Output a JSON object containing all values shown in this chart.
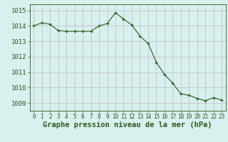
{
  "x": [
    0,
    1,
    2,
    3,
    4,
    5,
    6,
    7,
    8,
    9,
    10,
    11,
    12,
    13,
    14,
    15,
    16,
    17,
    18,
    19,
    20,
    21,
    22,
    23
  ],
  "y": [
    1014.0,
    1014.2,
    1014.1,
    1013.7,
    1013.65,
    1013.65,
    1013.65,
    1013.65,
    1014.0,
    1014.15,
    1014.85,
    1014.45,
    1014.05,
    1013.35,
    1012.85,
    1011.65,
    1010.85,
    1010.3,
    1009.6,
    1009.5,
    1009.3,
    1009.15,
    1009.35,
    1009.2
  ],
  "line_color": "#2d5a1b",
  "marker_color": "#2d5a1b",
  "bg_color": "#d8f0ee",
  "grid_color": "#c8b8c8",
  "xlabel": "Graphe pression niveau de la mer (hPa)",
  "xlabel_fontsize": 7.5,
  "ylim": [
    1008.5,
    1015.4
  ],
  "yticks": [
    1009,
    1010,
    1011,
    1012,
    1013,
    1014,
    1015
  ],
  "xlim": [
    -0.5,
    23.5
  ],
  "xticks": [
    0,
    1,
    2,
    3,
    4,
    5,
    6,
    7,
    8,
    9,
    10,
    11,
    12,
    13,
    14,
    15,
    16,
    17,
    18,
    19,
    20,
    21,
    22,
    23
  ],
  "figsize": [
    3.2,
    2.0
  ],
  "dpi": 100
}
